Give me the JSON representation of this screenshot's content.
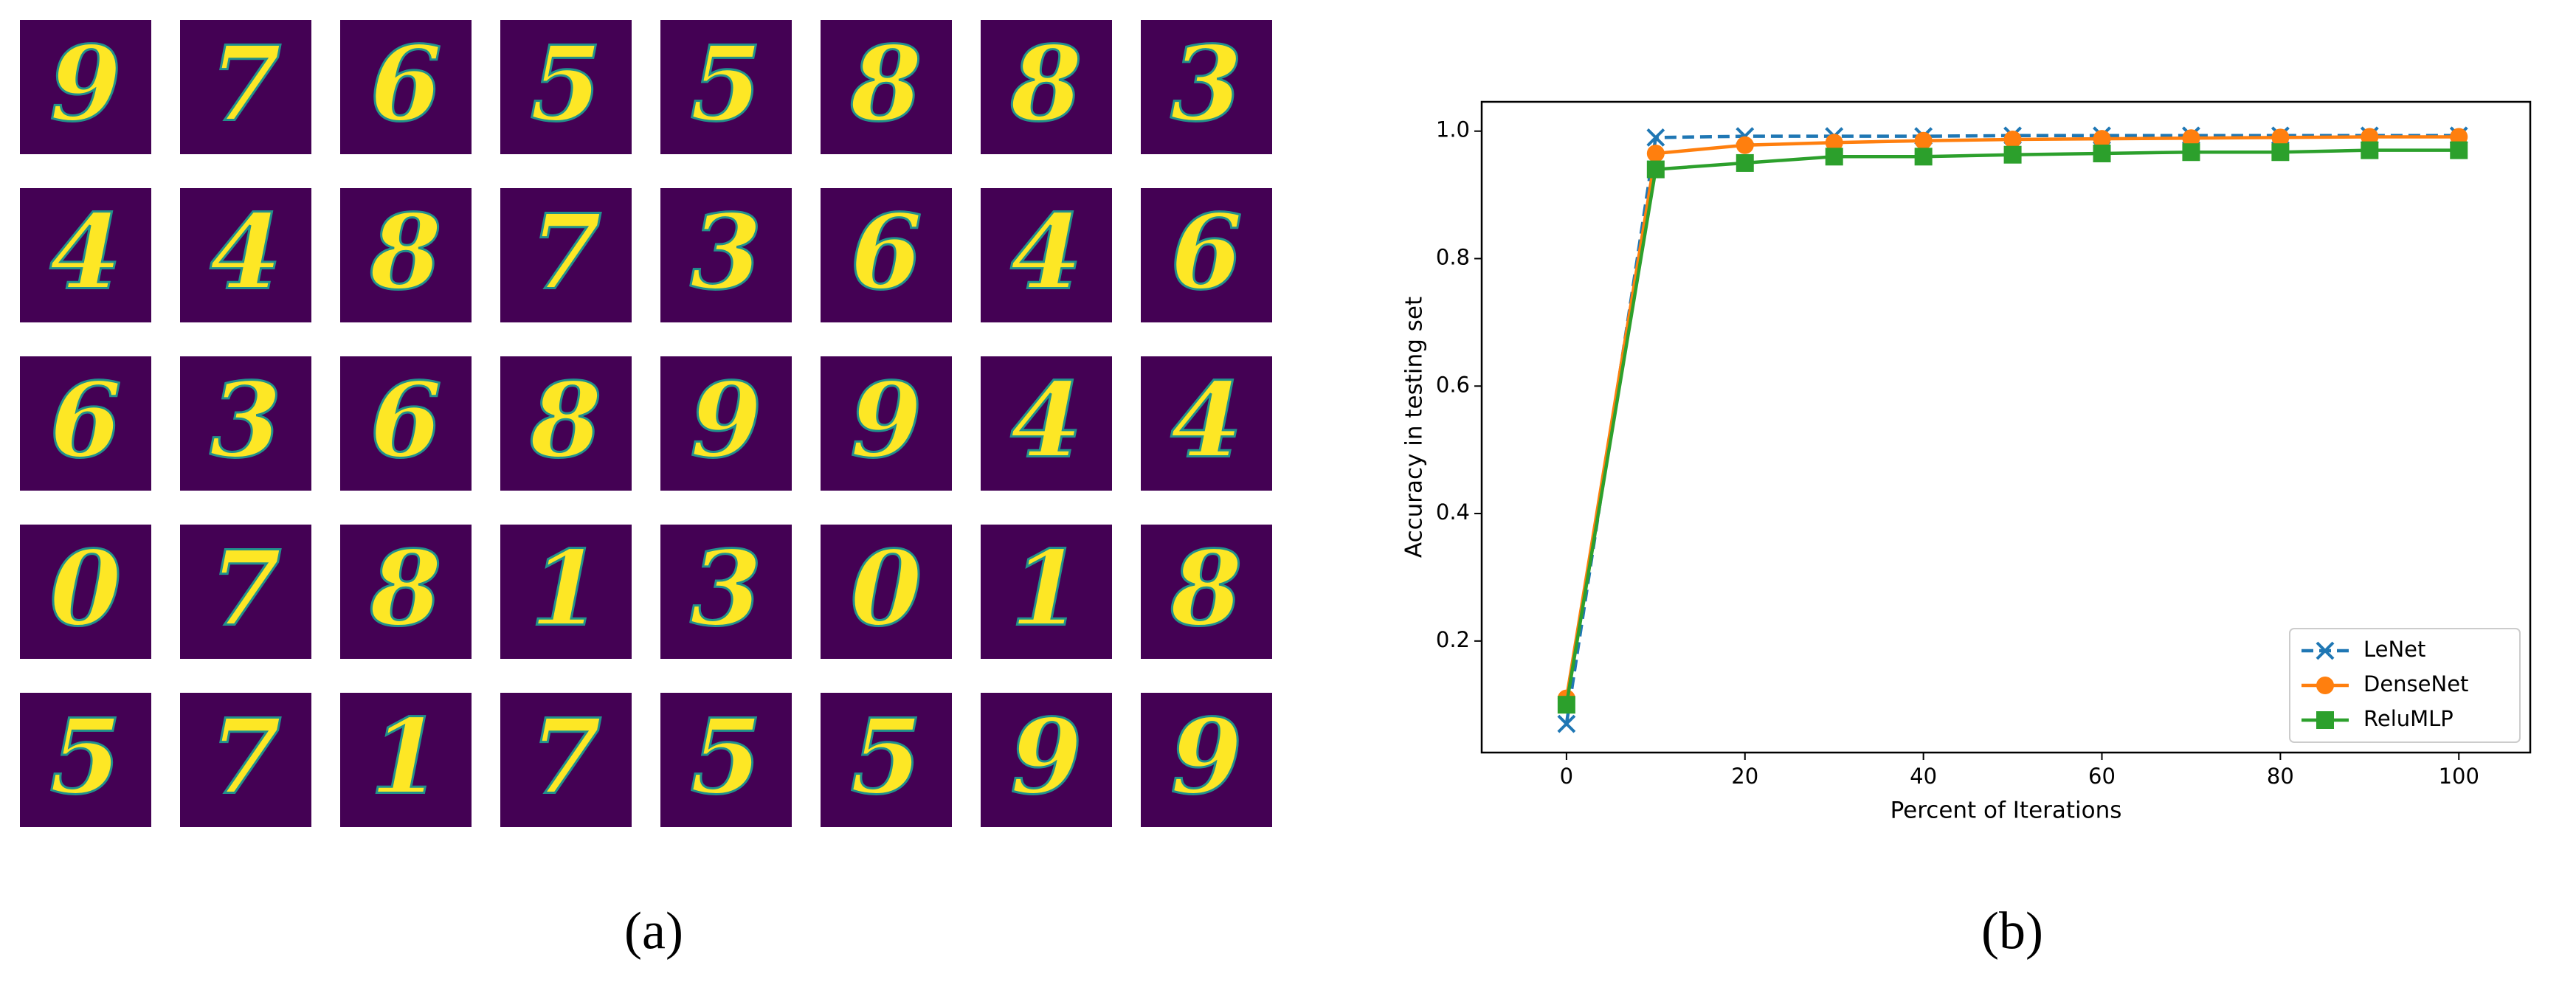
{
  "panel_a": {
    "digits": [
      [
        "9",
        "7",
        "6",
        "5",
        "5",
        "8",
        "8",
        "3"
      ],
      [
        "4",
        "4",
        "8",
        "7",
        "3",
        "6",
        "4",
        "6"
      ],
      [
        "6",
        "3",
        "6",
        "8",
        "9",
        "9",
        "4",
        "4"
      ],
      [
        "0",
        "7",
        "8",
        "1",
        "3",
        "0",
        "1",
        "8"
      ],
      [
        "5",
        "7",
        "1",
        "7",
        "5",
        "5",
        "9",
        "9"
      ]
    ],
    "caption": "(a)"
  },
  "panel_b": {
    "caption": "(b)"
  },
  "chart_data": {
    "type": "line",
    "xlabel": "Percent of Iterations",
    "ylabel": "Accuracy in testing set",
    "x": [
      0,
      10,
      20,
      30,
      40,
      50,
      60,
      70,
      80,
      90,
      100
    ],
    "series": [
      {
        "name": "LeNet",
        "color": "#1f77b4",
        "linestyle": "dashed",
        "marker": "x",
        "values": [
          0.07,
          0.99,
          0.992,
          0.992,
          0.992,
          0.993,
          0.993,
          0.993,
          0.993,
          0.993,
          0.993
        ]
      },
      {
        "name": "DenseNet",
        "color": "#ff7f0e",
        "linestyle": "solid",
        "marker": "circle",
        "values": [
          0.11,
          0.965,
          0.978,
          0.982,
          0.985,
          0.987,
          0.988,
          0.989,
          0.99,
          0.991,
          0.991
        ]
      },
      {
        "name": "ReluMLP",
        "color": "#2ca02c",
        "linestyle": "solid",
        "marker": "square",
        "values": [
          0.1,
          0.94,
          0.95,
          0.96,
          0.96,
          0.963,
          0.965,
          0.967,
          0.967,
          0.97,
          0.97
        ]
      }
    ],
    "xlim": [
      -9.5,
      108
    ],
    "ylim": [
      0.025,
      1.046
    ],
    "xticks": [
      0,
      20,
      40,
      60,
      80,
      100
    ],
    "yticks": [
      0.2,
      0.4,
      0.6,
      0.8,
      {
        "value": 1,
        "label": "1.0"
      }
    ],
    "legend": "lower right"
  }
}
